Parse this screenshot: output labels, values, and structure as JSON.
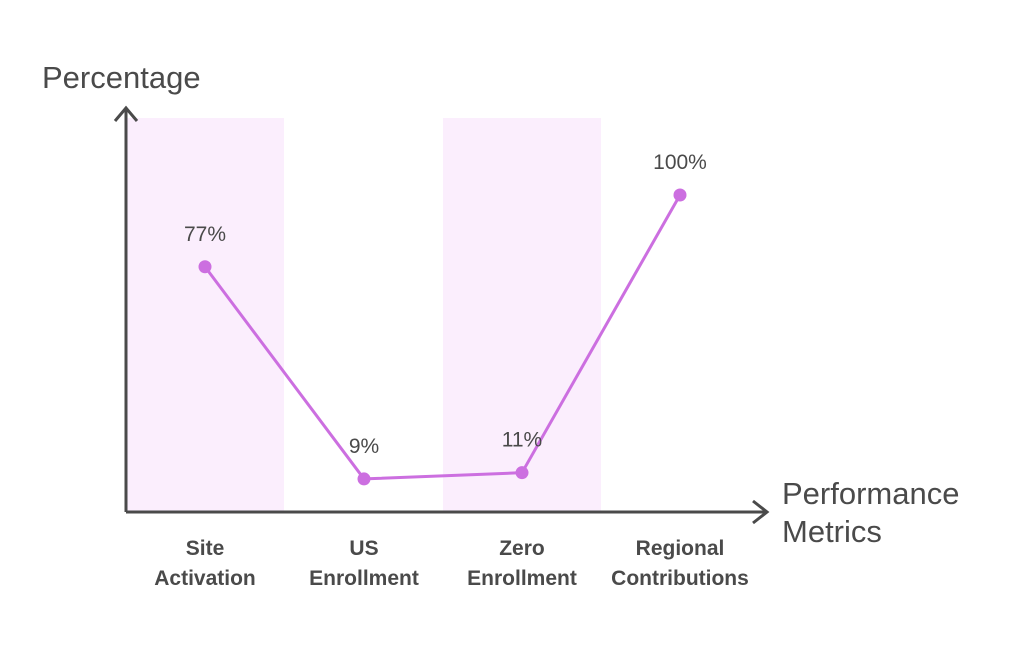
{
  "chart_data": {
    "type": "line",
    "ylabel": "Percentage",
    "xlabel_lines": [
      "Performance",
      "Metrics"
    ],
    "categories": [
      [
        "Site",
        "Activation"
      ],
      [
        "US",
        "Enrollment"
      ],
      [
        "Zero",
        "Enrollment"
      ],
      [
        "Regional",
        "Contributions"
      ]
    ],
    "values": [
      77,
      9,
      11,
      100
    ],
    "data_labels": [
      "77%",
      "9%",
      "11%",
      "100%"
    ],
    "shaded_bands": [
      0,
      2
    ],
    "ylim": [
      0,
      110
    ],
    "grid": false,
    "legend": "none",
    "colors": {
      "line": "#cc6fe0",
      "band": "#fbeefd",
      "axis": "#4a4a4a",
      "text": "#4a4a4a"
    }
  }
}
